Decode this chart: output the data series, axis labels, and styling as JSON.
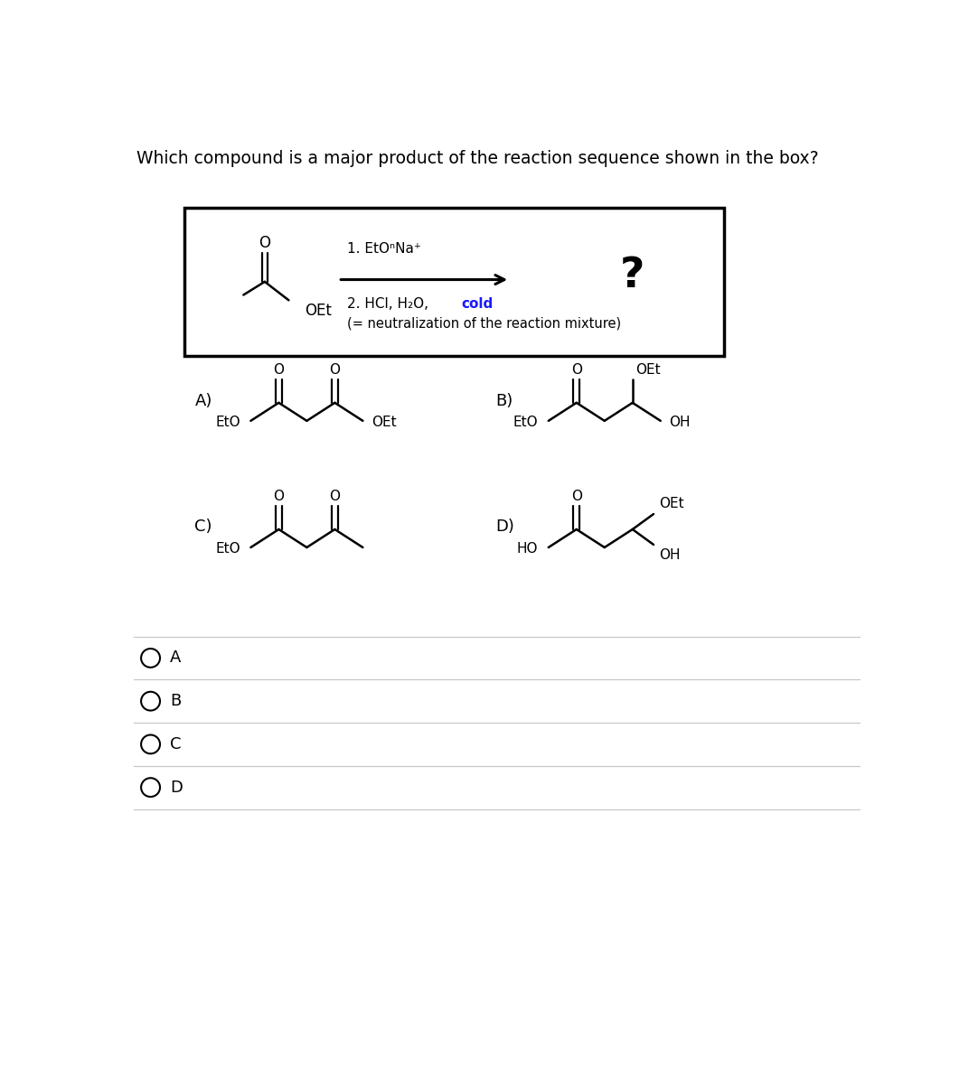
{
  "title": "Which compound is a major product of the reaction sequence shown in the box?",
  "title_fontsize": 13.5,
  "bg_color": "#ffffff",
  "text_color": "#000000",
  "cold_color": "#1a1aff",
  "question_mark": "?",
  "choice_A": "A)",
  "choice_B": "B)",
  "choice_C": "C)",
  "choice_D": "D)",
  "radio_labels": [
    "A",
    "B",
    "C",
    "D"
  ],
  "step1": "1. EtOⁿNa⁺",
  "step2a": "2. HCl, H₂O, ",
  "step2a_cold": "cold",
  "step2b": "(= neutralization of the reaction mixture)"
}
